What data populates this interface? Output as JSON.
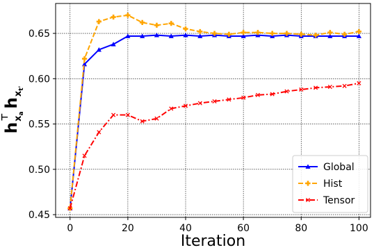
{
  "chart_data": {
    "type": "line",
    "xlabel": "Iteration",
    "ylabel": "h_{x_a}^T h_{x_t'}",
    "xlim": [
      -5,
      104
    ],
    "ylim": [
      0.447,
      0.683
    ],
    "xticks": [
      0,
      20,
      40,
      60,
      80,
      100
    ],
    "yticks": [
      0.45,
      0.5,
      0.55,
      0.6,
      0.65
    ],
    "xtick_labels": [
      "0",
      "20",
      "40",
      "60",
      "80",
      "100"
    ],
    "ytick_labels": [
      "0.45",
      "0.50",
      "0.55",
      "0.60",
      "0.65"
    ],
    "grid": true,
    "legend_position": "lower-right",
    "x": [
      0,
      5,
      10,
      15,
      20,
      25,
      30,
      35,
      40,
      45,
      50,
      55,
      60,
      65,
      70,
      75,
      80,
      85,
      90,
      95,
      100
    ],
    "series": [
      {
        "name": "Global",
        "color": "#0000ff",
        "line_style": "solid",
        "marker": "triangle",
        "values": [
          0.457,
          0.616,
          0.632,
          0.638,
          0.647,
          0.647,
          0.648,
          0.647,
          0.648,
          0.647,
          0.648,
          0.647,
          0.647,
          0.648,
          0.647,
          0.648,
          0.647,
          0.647,
          0.647,
          0.647,
          0.647
        ]
      },
      {
        "name": "Hist",
        "color": "#ffa500",
        "line_style": "dashed",
        "marker": "plus",
        "values": [
          0.457,
          0.622,
          0.663,
          0.668,
          0.67,
          0.662,
          0.659,
          0.661,
          0.655,
          0.652,
          0.65,
          0.649,
          0.651,
          0.651,
          0.65,
          0.65,
          0.649,
          0.648,
          0.651,
          0.649,
          0.652
        ]
      },
      {
        "name": "Tensor",
        "color": "#ff0000",
        "line_style": "dashdot",
        "marker": "x",
        "values": [
          0.457,
          0.515,
          0.541,
          0.56,
          0.56,
          0.553,
          0.556,
          0.567,
          0.57,
          0.573,
          0.575,
          0.577,
          0.579,
          0.582,
          0.583,
          0.586,
          0.588,
          0.59,
          0.591,
          0.592,
          0.595
        ]
      }
    ]
  }
}
